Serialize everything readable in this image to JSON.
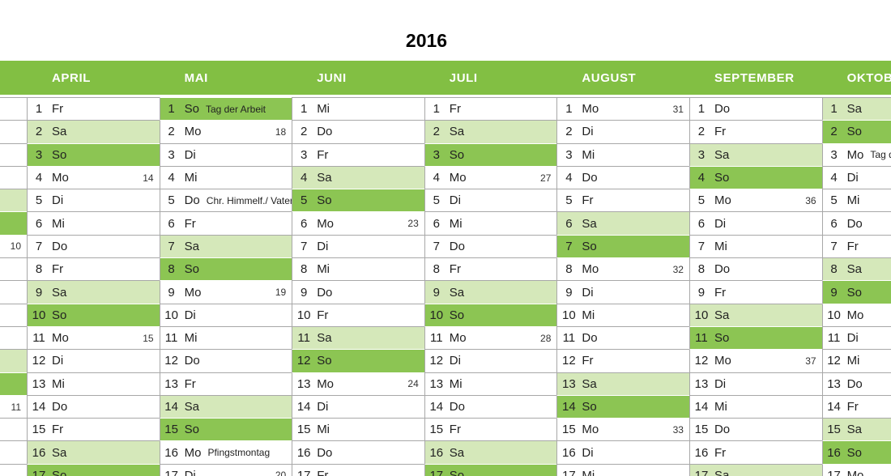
{
  "title": "2016",
  "colors": {
    "header_green": "#82bf43",
    "sunday_green": "#8cc553",
    "saturday_green": "#d5e8ba",
    "grid_gray": "#a8a8a8"
  },
  "march_strip": {
    "rows": [
      {
        "wk": "",
        "type": ""
      },
      {
        "wk": "",
        "type": ""
      },
      {
        "wk": "",
        "type": ""
      },
      {
        "wk": "",
        "type": ""
      },
      {
        "wk": "",
        "type": "sa"
      },
      {
        "wk": "",
        "type": "so"
      },
      {
        "wk": "10",
        "type": ""
      },
      {
        "wk": "",
        "type": ""
      },
      {
        "wk": "",
        "type": ""
      },
      {
        "wk": "",
        "type": ""
      },
      {
        "wk": "",
        "type": ""
      },
      {
        "wk": "",
        "type": "sa"
      },
      {
        "wk": "",
        "type": "so"
      },
      {
        "wk": "11",
        "type": ""
      },
      {
        "wk": "",
        "type": ""
      },
      {
        "wk": "",
        "type": ""
      },
      {
        "wk": "",
        "type": ""
      }
    ]
  },
  "months": [
    {
      "name": "APRIL",
      "days": [
        {
          "d": 1,
          "wd": "Fr"
        },
        {
          "d": 2,
          "wd": "Sa"
        },
        {
          "d": 3,
          "wd": "So"
        },
        {
          "d": 4,
          "wd": "Mo",
          "wk": "14"
        },
        {
          "d": 5,
          "wd": "Di"
        },
        {
          "d": 6,
          "wd": "Mi"
        },
        {
          "d": 7,
          "wd": "Do"
        },
        {
          "d": 8,
          "wd": "Fr"
        },
        {
          "d": 9,
          "wd": "Sa"
        },
        {
          "d": 10,
          "wd": "So"
        },
        {
          "d": 11,
          "wd": "Mo",
          "wk": "15"
        },
        {
          "d": 12,
          "wd": "Di"
        },
        {
          "d": 13,
          "wd": "Mi"
        },
        {
          "d": 14,
          "wd": "Do"
        },
        {
          "d": 15,
          "wd": "Fr"
        },
        {
          "d": 16,
          "wd": "Sa"
        },
        {
          "d": 17,
          "wd": "So"
        }
      ]
    },
    {
      "name": "MAI",
      "days": [
        {
          "d": 1,
          "wd": "So",
          "holiday": "Tag der Arbeit"
        },
        {
          "d": 2,
          "wd": "Mo",
          "wk": "18"
        },
        {
          "d": 3,
          "wd": "Di"
        },
        {
          "d": 4,
          "wd": "Mi"
        },
        {
          "d": 5,
          "wd": "Do",
          "holiday": "Chr. Himmelf./ Vatertag"
        },
        {
          "d": 6,
          "wd": "Fr"
        },
        {
          "d": 7,
          "wd": "Sa"
        },
        {
          "d": 8,
          "wd": "So"
        },
        {
          "d": 9,
          "wd": "Mo",
          "wk": "19"
        },
        {
          "d": 10,
          "wd": "Di"
        },
        {
          "d": 11,
          "wd": "Mi"
        },
        {
          "d": 12,
          "wd": "Do"
        },
        {
          "d": 13,
          "wd": "Fr"
        },
        {
          "d": 14,
          "wd": "Sa"
        },
        {
          "d": 15,
          "wd": "So"
        },
        {
          "d": 16,
          "wd": "Mo",
          "holiday": "Pfingstmontag"
        },
        {
          "d": 17,
          "wd": "Di",
          "wk": "20"
        }
      ]
    },
    {
      "name": "JUNI",
      "days": [
        {
          "d": 1,
          "wd": "Mi"
        },
        {
          "d": 2,
          "wd": "Do"
        },
        {
          "d": 3,
          "wd": "Fr"
        },
        {
          "d": 4,
          "wd": "Sa"
        },
        {
          "d": 5,
          "wd": "So"
        },
        {
          "d": 6,
          "wd": "Mo",
          "wk": "23"
        },
        {
          "d": 7,
          "wd": "Di"
        },
        {
          "d": 8,
          "wd": "Mi"
        },
        {
          "d": 9,
          "wd": "Do"
        },
        {
          "d": 10,
          "wd": "Fr"
        },
        {
          "d": 11,
          "wd": "Sa"
        },
        {
          "d": 12,
          "wd": "So"
        },
        {
          "d": 13,
          "wd": "Mo",
          "wk": "24"
        },
        {
          "d": 14,
          "wd": "Di"
        },
        {
          "d": 15,
          "wd": "Mi"
        },
        {
          "d": 16,
          "wd": "Do"
        },
        {
          "d": 17,
          "wd": "Fr"
        }
      ]
    },
    {
      "name": "JULI",
      "days": [
        {
          "d": 1,
          "wd": "Fr"
        },
        {
          "d": 2,
          "wd": "Sa"
        },
        {
          "d": 3,
          "wd": "So"
        },
        {
          "d": 4,
          "wd": "Mo",
          "wk": "27"
        },
        {
          "d": 5,
          "wd": "Di"
        },
        {
          "d": 6,
          "wd": "Mi"
        },
        {
          "d": 7,
          "wd": "Do"
        },
        {
          "d": 8,
          "wd": "Fr"
        },
        {
          "d": 9,
          "wd": "Sa"
        },
        {
          "d": 10,
          "wd": "So"
        },
        {
          "d": 11,
          "wd": "Mo",
          "wk": "28"
        },
        {
          "d": 12,
          "wd": "Di"
        },
        {
          "d": 13,
          "wd": "Mi"
        },
        {
          "d": 14,
          "wd": "Do"
        },
        {
          "d": 15,
          "wd": "Fr"
        },
        {
          "d": 16,
          "wd": "Sa"
        },
        {
          "d": 17,
          "wd": "So"
        }
      ]
    },
    {
      "name": "AUGUST",
      "days": [
        {
          "d": 1,
          "wd": "Mo",
          "wk": "31"
        },
        {
          "d": 2,
          "wd": "Di"
        },
        {
          "d": 3,
          "wd": "Mi"
        },
        {
          "d": 4,
          "wd": "Do"
        },
        {
          "d": 5,
          "wd": "Fr"
        },
        {
          "d": 6,
          "wd": "Sa"
        },
        {
          "d": 7,
          "wd": "So"
        },
        {
          "d": 8,
          "wd": "Mo",
          "wk": "32"
        },
        {
          "d": 9,
          "wd": "Di"
        },
        {
          "d": 10,
          "wd": "Mi"
        },
        {
          "d": 11,
          "wd": "Do"
        },
        {
          "d": 12,
          "wd": "Fr"
        },
        {
          "d": 13,
          "wd": "Sa"
        },
        {
          "d": 14,
          "wd": "So"
        },
        {
          "d": 15,
          "wd": "Mo",
          "wk": "33"
        },
        {
          "d": 16,
          "wd": "Di"
        },
        {
          "d": 17,
          "wd": "Mi"
        }
      ]
    },
    {
      "name": "SEPTEMBER",
      "days": [
        {
          "d": 1,
          "wd": "Do"
        },
        {
          "d": 2,
          "wd": "Fr"
        },
        {
          "d": 3,
          "wd": "Sa"
        },
        {
          "d": 4,
          "wd": "So"
        },
        {
          "d": 5,
          "wd": "Mo",
          "wk": "36"
        },
        {
          "d": 6,
          "wd": "Di"
        },
        {
          "d": 7,
          "wd": "Mi"
        },
        {
          "d": 8,
          "wd": "Do"
        },
        {
          "d": 9,
          "wd": "Fr"
        },
        {
          "d": 10,
          "wd": "Sa"
        },
        {
          "d": 11,
          "wd": "So"
        },
        {
          "d": 12,
          "wd": "Mo",
          "wk": "37"
        },
        {
          "d": 13,
          "wd": "Di"
        },
        {
          "d": 14,
          "wd": "Mi"
        },
        {
          "d": 15,
          "wd": "Do"
        },
        {
          "d": 16,
          "wd": "Fr"
        },
        {
          "d": 17,
          "wd": "Sa"
        }
      ]
    },
    {
      "name": "OKTOBER",
      "days": [
        {
          "d": 1,
          "wd": "Sa"
        },
        {
          "d": 2,
          "wd": "So"
        },
        {
          "d": 3,
          "wd": "Mo",
          "holiday": "Tag der Deutschen Einheit"
        },
        {
          "d": 4,
          "wd": "Di"
        },
        {
          "d": 5,
          "wd": "Mi"
        },
        {
          "d": 6,
          "wd": "Do"
        },
        {
          "d": 7,
          "wd": "Fr"
        },
        {
          "d": 8,
          "wd": "Sa"
        },
        {
          "d": 9,
          "wd": "So"
        },
        {
          "d": 10,
          "wd": "Mo"
        },
        {
          "d": 11,
          "wd": "Di"
        },
        {
          "d": 12,
          "wd": "Mi"
        },
        {
          "d": 13,
          "wd": "Do"
        },
        {
          "d": 14,
          "wd": "Fr"
        },
        {
          "d": 15,
          "wd": "Sa"
        },
        {
          "d": 16,
          "wd": "So"
        },
        {
          "d": 17,
          "wd": "Mo"
        }
      ]
    }
  ]
}
